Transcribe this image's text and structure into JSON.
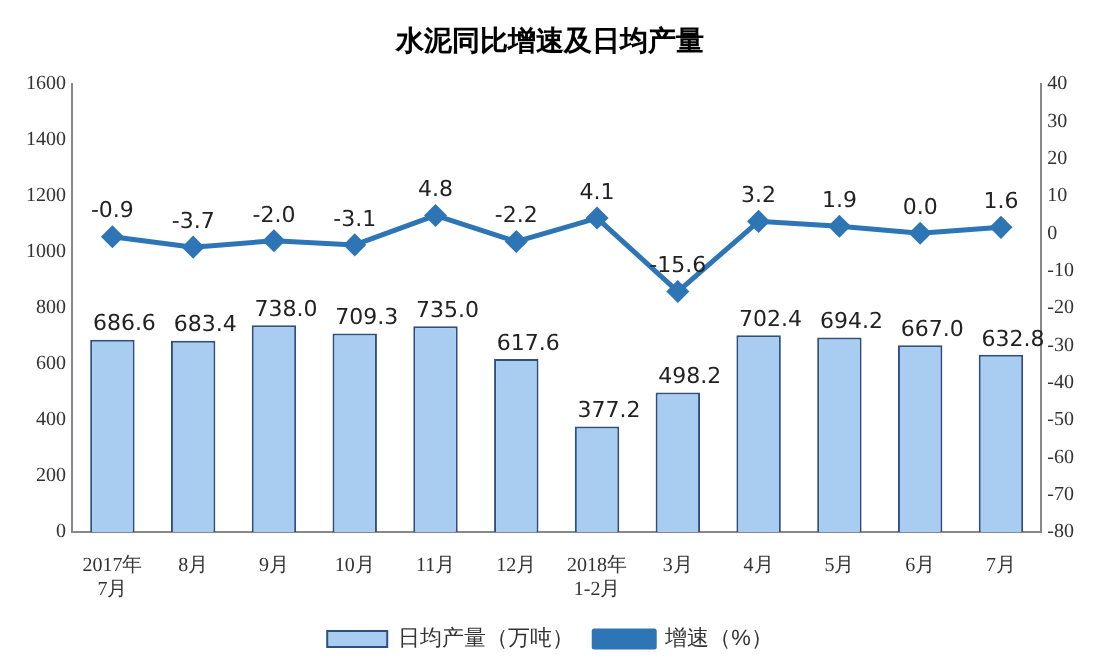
{
  "chart_data": {
    "type": "bar",
    "title": "水泥同比增速及日均产量",
    "categories": [
      "2017年\n7月",
      "8月",
      "9月",
      "10月",
      "11月",
      "12月",
      "2018年\n1-2月",
      "3月",
      "4月",
      "5月",
      "6月",
      "7月"
    ],
    "series": [
      {
        "name": "日均产量（万吨）",
        "color": "#a9cdf0",
        "values": [
          686.6,
          683.4,
          738.0,
          709.3,
          735.0,
          617.6,
          377.2,
          498.2,
          702.4,
          694.2,
          667.0,
          632.8
        ],
        "value_labels": [
          "686.6",
          "683.4",
          "738.0",
          "709.3",
          "735.0",
          "617.6",
          "377.2",
          "498.2",
          "702.4",
          "694.2",
          "667.0",
          "632.8"
        ]
      },
      {
        "name": "增速（%）",
        "type": "line",
        "axis": "y2",
        "color": "#2e75b6",
        "values": [
          -0.9,
          -3.7,
          -2.0,
          -3.1,
          4.8,
          -2.2,
          4.1,
          -15.6,
          3.2,
          1.9,
          0.0,
          1.6
        ],
        "value_labels": [
          "-0.9",
          "-3.7",
          "-2.0",
          "-3.1",
          "4.8",
          "-2.2",
          "4.1",
          "-15.6",
          "3.2",
          "1.9",
          "0.0",
          "1.6"
        ]
      }
    ],
    "ylim": [
      0,
      1600
    ],
    "yticks": [
      0,
      200,
      400,
      600,
      800,
      1000,
      1200,
      1400,
      1600
    ],
    "y2lim": [
      -80,
      40
    ],
    "y2ticks": [
      -80,
      -70,
      -60,
      -50,
      -40,
      -30,
      -20,
      -10,
      0,
      10,
      20,
      30,
      40
    ],
    "grid": false,
    "legend": "bottom",
    "marker": "diamond",
    "line_style": "solid"
  }
}
